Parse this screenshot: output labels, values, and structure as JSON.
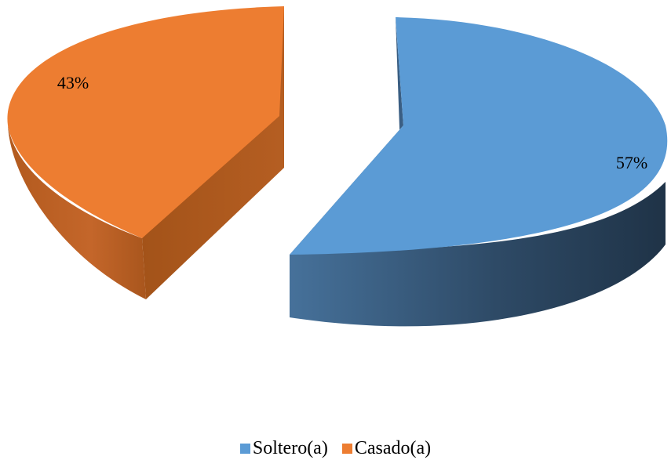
{
  "chart_data": {
    "type": "pie",
    "style": "3d-exploded",
    "slices": [
      {
        "name": "Soltero(a)",
        "value": 57,
        "label": "57%",
        "color": "#5B9BD5"
      },
      {
        "name": "Casado(a)",
        "value": 43,
        "label": "43%",
        "color": "#ED7D31"
      }
    ],
    "legend": {
      "placement": "bottom",
      "items": [
        "Soltero(a)",
        "Casado(a)"
      ]
    }
  }
}
